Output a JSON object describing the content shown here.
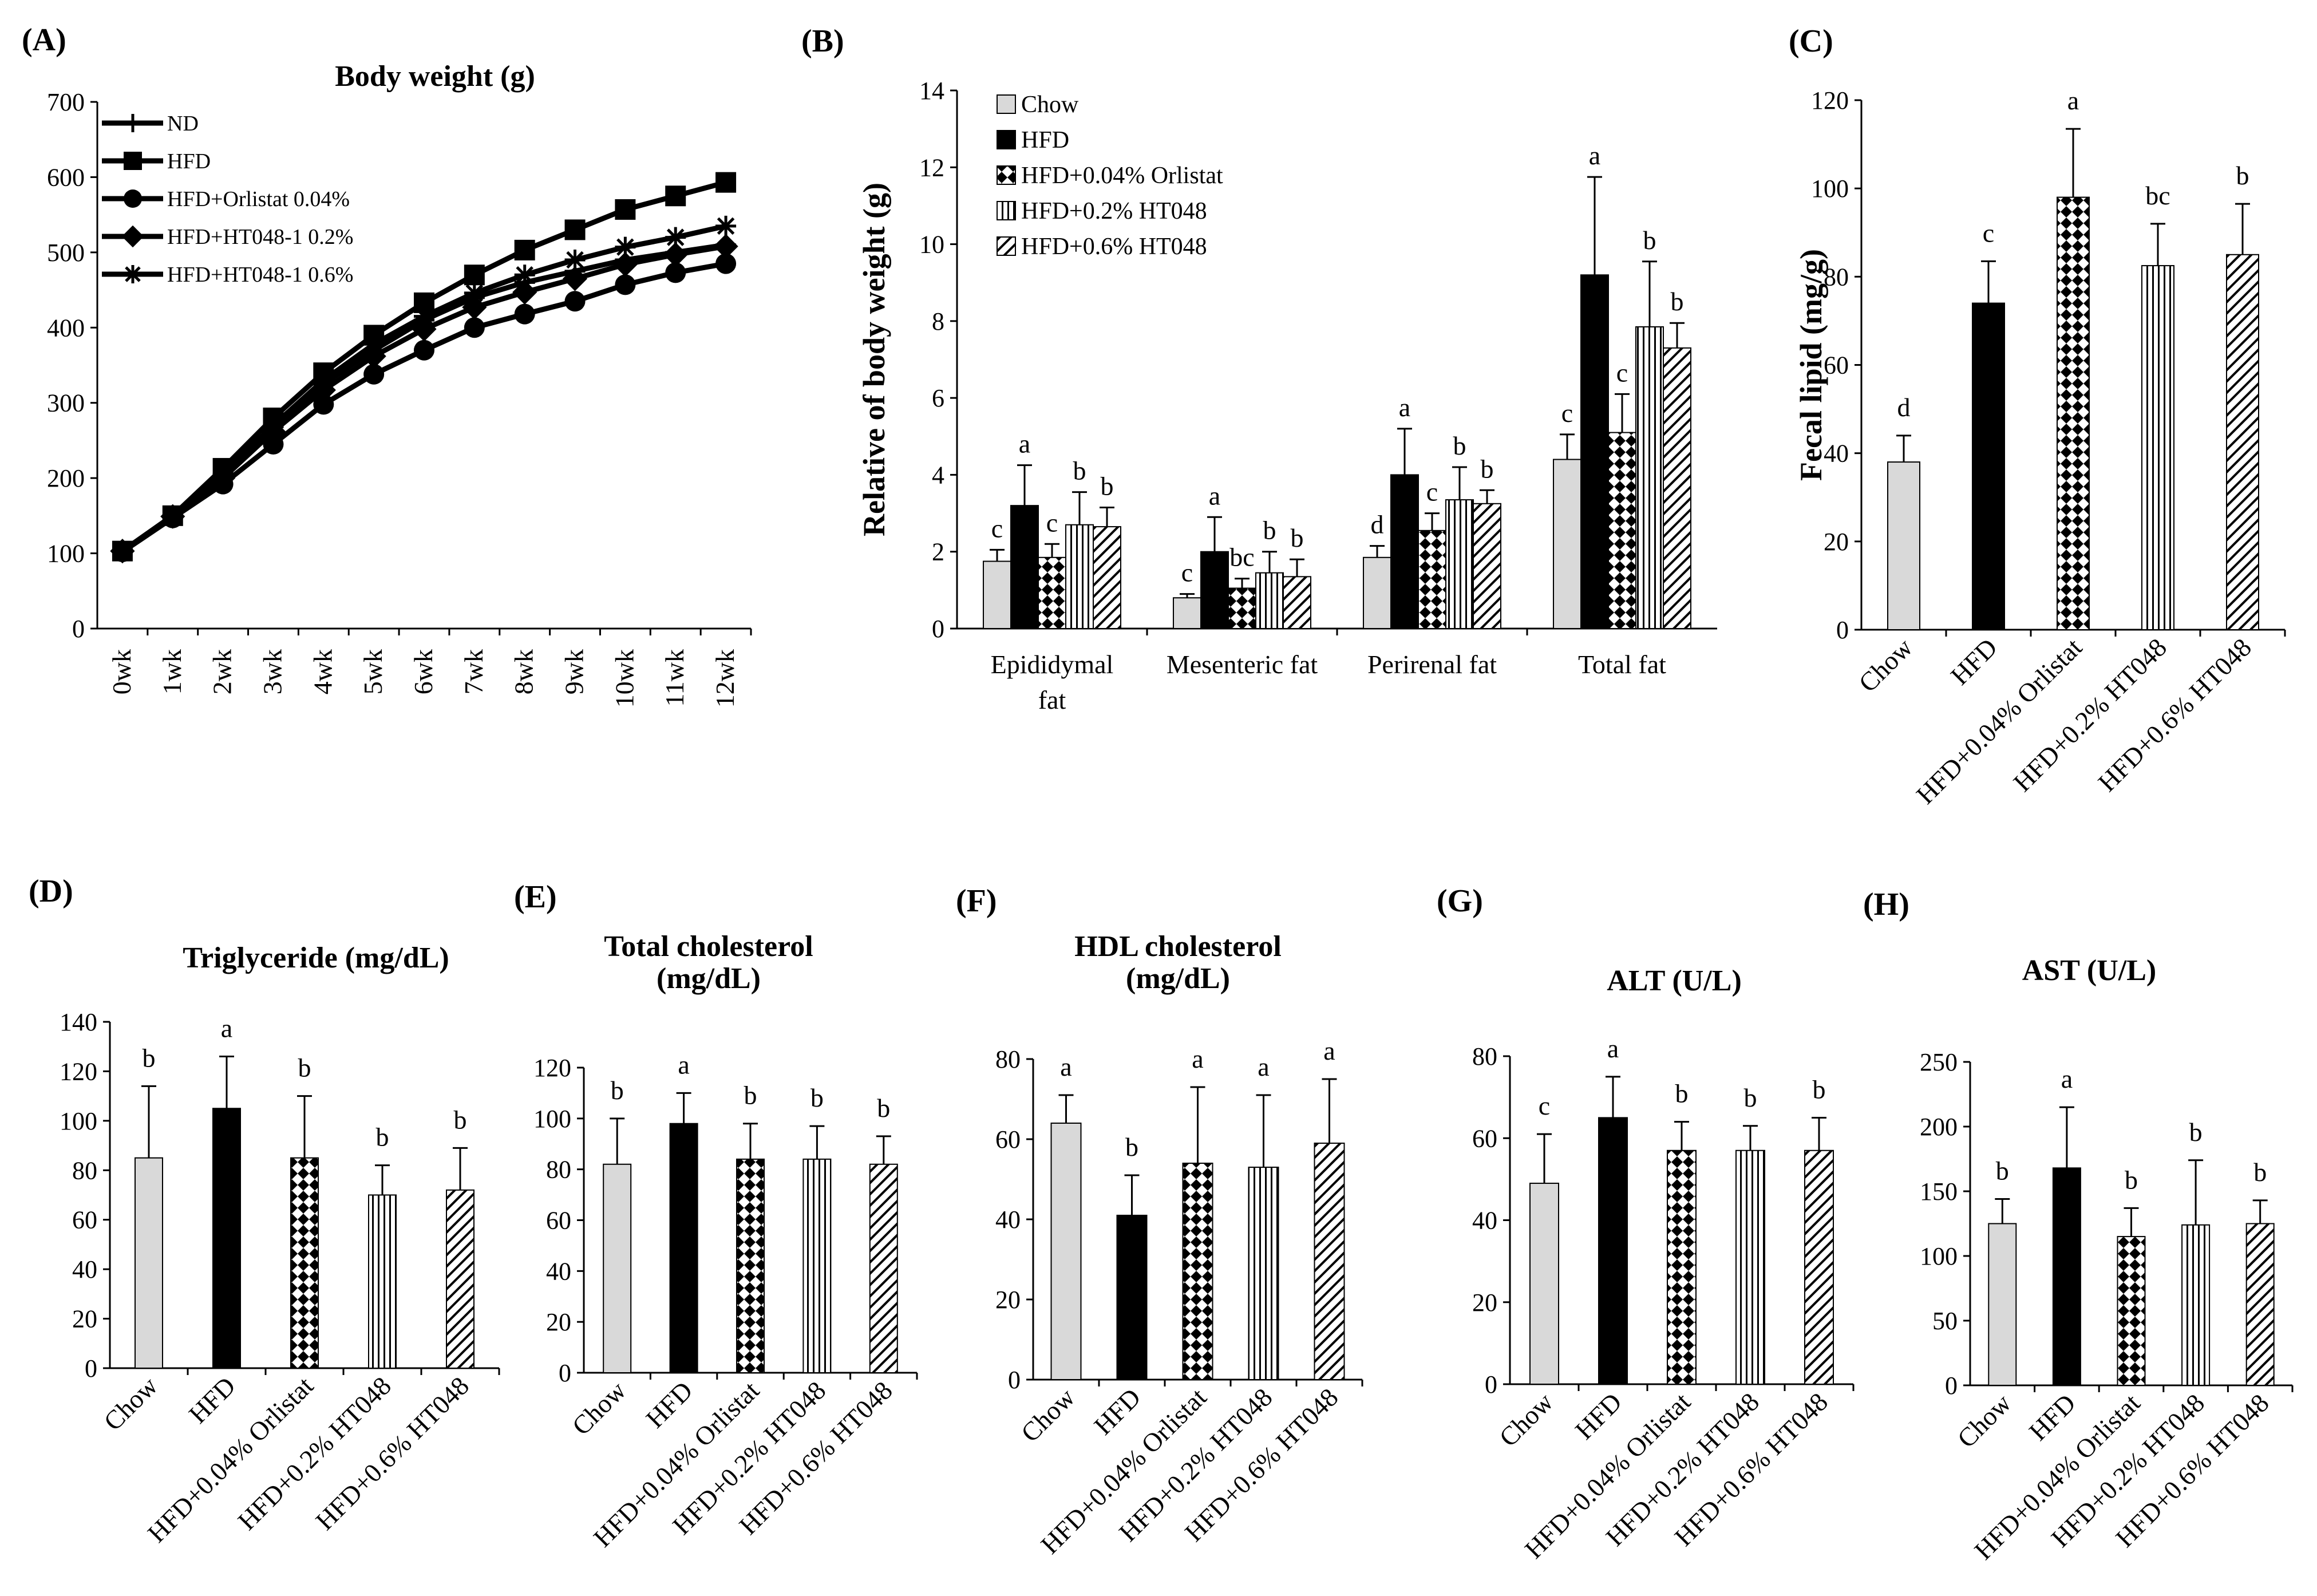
{
  "colors": {
    "chow": "#d9d9d9",
    "hfd": "#000000",
    "stroke": "#000000"
  },
  "patterns": [
    "solid-gray",
    "solid-black",
    "checker",
    "vertical-lines",
    "diagonal-lines"
  ],
  "chart_data": [
    {
      "id": "A",
      "panel_label": "(A)",
      "type": "line",
      "title": "Body weight (g)",
      "categories": [
        "0wk",
        "1wk",
        "2wk",
        "3wk",
        "4wk",
        "5wk",
        "6wk",
        "7wk",
        "8wk",
        "9wk",
        "10wk",
        "11wk",
        "12wk"
      ],
      "ylim": [
        0,
        700
      ],
      "yticks": [
        0,
        100,
        200,
        300,
        400,
        500,
        600,
        700
      ],
      "series": [
        {
          "name": "ND",
          "marker": "plus",
          "values": [
            103,
            150,
            205,
            270,
            325,
            370,
            410,
            440,
            460,
            475,
            490,
            500,
            510
          ]
        },
        {
          "name": "HFD",
          "marker": "square",
          "values": [
            103,
            150,
            213,
            280,
            340,
            390,
            433,
            470,
            503,
            530,
            557,
            575,
            593
          ]
        },
        {
          "name": "HFD+Orlistat 0.04%",
          "marker": "circle",
          "values": [
            102,
            147,
            192,
            245,
            298,
            338,
            370,
            400,
            418,
            435,
            457,
            473,
            485
          ]
        },
        {
          "name": "HFD+HT048-1 0.2%",
          "marker": "diamond",
          "values": [
            103,
            149,
            200,
            262,
            317,
            362,
            398,
            427,
            447,
            465,
            484,
            497,
            508
          ]
        },
        {
          "name": "HFD+HT048-1 0.6%",
          "marker": "star",
          "values": [
            103,
            150,
            205,
            270,
            330,
            378,
            415,
            446,
            470,
            490,
            507,
            520,
            535
          ]
        }
      ]
    },
    {
      "id": "B",
      "panel_label": "(B)",
      "type": "bar",
      "title": "",
      "ylabel": "Relative of body weight (g)",
      "ylim": [
        0,
        14
      ],
      "yticks": [
        0,
        2,
        4,
        6,
        8,
        10,
        12,
        14
      ],
      "categories": [
        [
          "Epididymal",
          "fat"
        ],
        [
          "Mesenteric fat"
        ],
        [
          "Perirenal fat"
        ],
        [
          "Total fat"
        ]
      ],
      "series": [
        {
          "name": "Chow",
          "pattern": 0,
          "values": [
            1.75,
            0.8,
            1.85,
            4.4
          ],
          "errors": [
            0.3,
            0.1,
            0.3,
            0.65
          ],
          "letters": [
            "c",
            "c",
            "d",
            "c"
          ]
        },
        {
          "name": "HFD",
          "pattern": 1,
          "values": [
            3.2,
            2.0,
            4.0,
            9.2
          ],
          "errors": [
            1.05,
            0.9,
            1.2,
            2.55
          ],
          "letters": [
            "a",
            "a",
            "a",
            "a"
          ]
        },
        {
          "name": "HFD+0.04% Orlistat",
          "pattern": 2,
          "values": [
            1.85,
            1.05,
            2.55,
            5.1
          ],
          "errors": [
            0.35,
            0.25,
            0.45,
            1.0
          ],
          "letters": [
            "c",
            "bc",
            "c",
            "c"
          ]
        },
        {
          "name": "HFD+0.2% HT048",
          "pattern": 3,
          "values": [
            2.7,
            1.45,
            3.35,
            7.85
          ],
          "errors": [
            0.85,
            0.55,
            0.85,
            1.7
          ],
          "letters": [
            "b",
            "b",
            "b",
            "b"
          ]
        },
        {
          "name": "HFD+0.6% HT048",
          "pattern": 4,
          "values": [
            2.65,
            1.35,
            3.25,
            7.3
          ],
          "errors": [
            0.5,
            0.45,
            0.35,
            0.65
          ],
          "letters": [
            "b",
            "b",
            "b",
            "b"
          ]
        }
      ]
    },
    {
      "id": "C",
      "panel_label": "(C)",
      "type": "bar",
      "title": "",
      "ylabel": "Fecal lipid (mg/g)",
      "ylim": [
        0,
        120
      ],
      "yticks": [
        0,
        20,
        40,
        60,
        80,
        100,
        120
      ],
      "categories": [
        "Chow",
        "HFD",
        "HFD+0.04% Orlistat",
        "HFD+0.2% HT048",
        "HFD+0.6% HT048"
      ],
      "values": [
        38,
        74,
        98,
        82.5,
        85
      ],
      "errors": [
        6,
        9.5,
        15.5,
        9.5,
        11.5
      ],
      "letters": [
        "d",
        "c",
        "a",
        "bc",
        "b"
      ]
    },
    {
      "id": "D",
      "panel_label": "(D)",
      "type": "bar",
      "title": [
        "Triglyceride (mg/dL)"
      ],
      "ylim": [
        0,
        140
      ],
      "yticks": [
        0,
        20,
        40,
        60,
        80,
        100,
        120,
        140
      ],
      "categories": [
        "Chow",
        "HFD",
        "HFD+0.04% Orlistat",
        "HFD+0.2% HT048",
        "HFD+0.6% HT048"
      ],
      "values": [
        85,
        105,
        85,
        70,
        72
      ],
      "errors": [
        29,
        21,
        25,
        12,
        17
      ],
      "letters": [
        "b",
        "a",
        "b",
        "b",
        "b"
      ]
    },
    {
      "id": "E",
      "panel_label": "(E)",
      "type": "bar",
      "title": [
        "Total cholesterol",
        "(mg/dL)"
      ],
      "ylim": [
        0,
        120
      ],
      "yticks": [
        0,
        20,
        40,
        60,
        80,
        100,
        120
      ],
      "categories": [
        "Chow",
        "HFD",
        "HFD+0.04% Orlistat",
        "HFD+0.2% HT048",
        "HFD+0.6% HT048"
      ],
      "values": [
        82,
        98,
        84,
        84,
        82
      ],
      "errors": [
        18,
        12,
        14,
        13,
        11
      ],
      "letters": [
        "b",
        "a",
        "b",
        "b",
        "b"
      ]
    },
    {
      "id": "F",
      "panel_label": "(F)",
      "type": "bar",
      "title": [
        "HDL cholesterol",
        "(mg/dL)"
      ],
      "ylim": [
        0,
        80
      ],
      "yticks": [
        0,
        20,
        40,
        60,
        80
      ],
      "categories": [
        "Chow",
        "HFD",
        "HFD+0.04% Orlistat",
        "HFD+0.2% HT048",
        "HFD+0.6% HT048"
      ],
      "values": [
        64,
        41,
        54,
        53,
        59
      ],
      "errors": [
        7,
        10,
        19,
        18,
        16
      ],
      "letters": [
        "a",
        "b",
        "a",
        "a",
        "a"
      ]
    },
    {
      "id": "G",
      "panel_label": "(G)",
      "type": "bar",
      "title": [
        "ALT (U/L)"
      ],
      "ylim": [
        0,
        80
      ],
      "yticks": [
        0,
        20,
        40,
        60,
        80
      ],
      "categories": [
        "Chow",
        "HFD",
        "HFD+0.04% Orlistat",
        "HFD+0.2% HT048",
        "HFD+0.6% HT048"
      ],
      "values": [
        49,
        65,
        57,
        57,
        57
      ],
      "errors": [
        12,
        10,
        7,
        6,
        8
      ],
      "letters": [
        "c",
        "a",
        "b",
        "b",
        "b"
      ]
    },
    {
      "id": "H",
      "panel_label": "(H)",
      "type": "bar",
      "title": [
        "AST (U/L)"
      ],
      "ylim": [
        0,
        250
      ],
      "yticks": [
        0,
        50,
        100,
        150,
        200,
        250
      ],
      "categories": [
        "Chow",
        "HFD",
        "HFD+0.04% Orlistat",
        "HFD+0.2% HT048",
        "HFD+0.6% HT048"
      ],
      "values": [
        125,
        168,
        115,
        124,
        125
      ],
      "errors": [
        19,
        47,
        22,
        50,
        18
      ],
      "letters": [
        "b",
        "a",
        "b",
        "b",
        "b"
      ]
    }
  ]
}
